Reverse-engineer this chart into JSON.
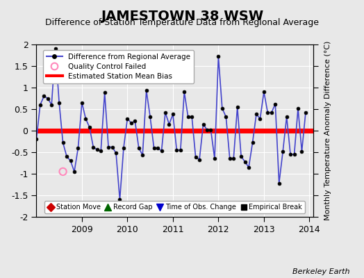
{
  "title": "JAMESTOWN 38 WSW",
  "subtitle": "Difference of Station Temperature Data from Regional Average",
  "ylabel": "Monthly Temperature Anomaly Difference (°C)",
  "credit": "Berkeley Earth",
  "ylim": [
    -2,
    2
  ],
  "bias_value": 0.0,
  "background_color": "#e8e8e8",
  "plot_bg_color": "#e8e8e8",
  "line_color": "#4444cc",
  "line_color_light": "#8888ee",
  "marker_color": "#000000",
  "bias_color": "#ff0000",
  "qc_color": "#ff88bb",
  "legend1_labels": [
    "Difference from Regional Average",
    "Quality Control Failed",
    "Estimated Station Mean Bias"
  ],
  "legend2_labels": [
    "Station Move",
    "Record Gap",
    "Time of Obs. Change",
    "Empirical Break"
  ],
  "time_values": [
    2008.0,
    2008.083,
    2008.167,
    2008.25,
    2008.333,
    2008.417,
    2008.5,
    2008.583,
    2008.667,
    2008.75,
    2008.833,
    2008.917,
    2009.0,
    2009.083,
    2009.167,
    2009.25,
    2009.333,
    2009.417,
    2009.5,
    2009.583,
    2009.667,
    2009.75,
    2009.833,
    2009.917,
    2010.0,
    2010.083,
    2010.167,
    2010.25,
    2010.333,
    2010.417,
    2010.5,
    2010.583,
    2010.667,
    2010.75,
    2010.833,
    2010.917,
    2011.0,
    2011.083,
    2011.167,
    2011.25,
    2011.333,
    2011.417,
    2011.5,
    2011.583,
    2011.667,
    2011.75,
    2011.833,
    2011.917,
    2012.0,
    2012.083,
    2012.167,
    2012.25,
    2012.333,
    2012.417,
    2012.5,
    2012.583,
    2012.667,
    2012.75,
    2012.833,
    2012.917,
    2013.0,
    2013.083,
    2013.167,
    2013.25,
    2013.333,
    2013.417,
    2013.5,
    2013.583,
    2013.667,
    2013.75,
    2013.833,
    2013.917
  ],
  "diff_values": [
    -0.2,
    0.6,
    0.8,
    0.75,
    0.6,
    1.9,
    0.65,
    -0.28,
    -0.6,
    -0.7,
    -0.95,
    -0.4,
    0.65,
    0.28,
    0.08,
    -0.38,
    -0.44,
    -0.47,
    0.88,
    -0.38,
    -0.38,
    -0.52,
    -1.6,
    -0.4,
    0.28,
    0.18,
    0.22,
    -0.4,
    -0.57,
    0.93,
    0.32,
    -0.4,
    -0.4,
    -0.47,
    0.42,
    0.15,
    0.38,
    -0.45,
    -0.45,
    0.9,
    0.32,
    0.32,
    -0.62,
    -0.67,
    0.15,
    0.02,
    0.02,
    -0.65,
    1.72,
    0.52,
    0.32,
    -0.65,
    -0.65,
    0.55,
    -0.6,
    -0.72,
    -0.85,
    -0.28,
    0.38,
    0.28,
    0.9,
    0.42,
    0.42,
    0.62,
    -1.22,
    -0.48,
    0.32,
    -0.55,
    -0.55,
    0.52,
    -0.48,
    0.42
  ],
  "qc_x": [
    2008.583
  ],
  "qc_y": [
    -0.95
  ],
  "xlim": [
    2008.0,
    2014.08
  ],
  "xticks": [
    2009,
    2010,
    2011,
    2012,
    2013,
    2014
  ],
  "yticks": [
    -2,
    -1.5,
    -1,
    -0.5,
    0,
    0.5,
    1,
    1.5,
    2
  ],
  "title_fontsize": 14,
  "subtitle_fontsize": 9,
  "tick_fontsize": 9,
  "ylabel_fontsize": 8
}
